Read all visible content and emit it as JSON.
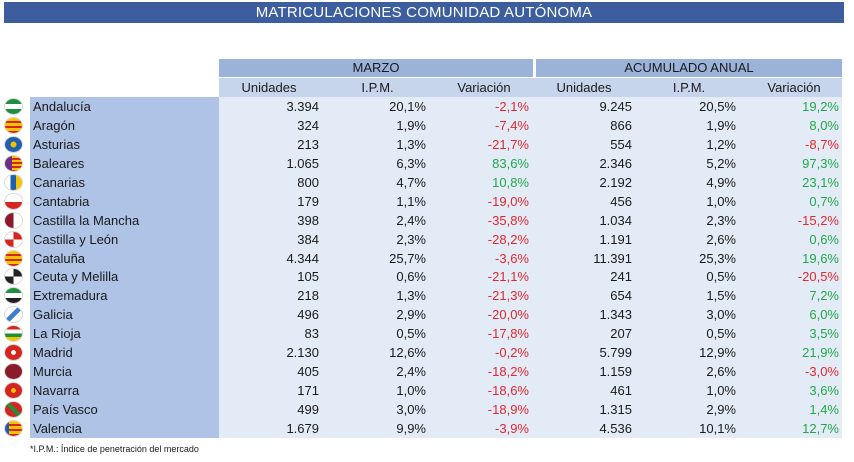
{
  "title": "MATRICULACIONES COMUNIDAD AUTÓNOMA",
  "groups": {
    "marzo": "MARZO",
    "anual": "ACUMULADO ANUAL"
  },
  "columns": {
    "unidades": "Unidades",
    "ipm": "I.P.M.",
    "variacion": "Variación"
  },
  "colors": {
    "negative": "#e0282e",
    "positive": "#22a84a",
    "header": "#3d5e9e"
  },
  "rows": [
    {
      "name": "Andalucía",
      "flag": "flag-andalucia-icon",
      "m_uni": "3.394",
      "m_ipm": "20,1%",
      "m_var": "-2,1%",
      "a_uni": "9.245",
      "a_ipm": "20,5%",
      "a_var": "19,2%"
    },
    {
      "name": "Aragón",
      "flag": "flag-aragon-icon",
      "m_uni": "324",
      "m_ipm": "1,9%",
      "m_var": "-7,4%",
      "a_uni": "866",
      "a_ipm": "1,9%",
      "a_var": "8,0%"
    },
    {
      "name": "Asturias",
      "flag": "flag-asturias-icon",
      "m_uni": "213",
      "m_ipm": "1,3%",
      "m_var": "-21,7%",
      "a_uni": "554",
      "a_ipm": "1,2%",
      "a_var": "-8,7%"
    },
    {
      "name": "Baleares",
      "flag": "flag-baleares-icon",
      "m_uni": "1.065",
      "m_ipm": "6,3%",
      "m_var": "83,6%",
      "a_uni": "2.346",
      "a_ipm": "5,2%",
      "a_var": "97,3%"
    },
    {
      "name": "Canarias",
      "flag": "flag-canarias-icon",
      "m_uni": "800",
      "m_ipm": "4,7%",
      "m_var": "10,8%",
      "a_uni": "2.192",
      "a_ipm": "4,9%",
      "a_var": "23,1%"
    },
    {
      "name": "Cantabria",
      "flag": "flag-cantabria-icon",
      "m_uni": "179",
      "m_ipm": "1,1%",
      "m_var": "-19,0%",
      "a_uni": "456",
      "a_ipm": "1,0%",
      "a_var": "0,7%"
    },
    {
      "name": "Castilla la Mancha",
      "flag": "flag-castilla-la-mancha-icon",
      "m_uni": "398",
      "m_ipm": "2,4%",
      "m_var": "-35,8%",
      "a_uni": "1.034",
      "a_ipm": "2,3%",
      "a_var": "-15,2%"
    },
    {
      "name": "Castilla y León",
      "flag": "flag-castilla-y-leon-icon",
      "m_uni": "384",
      "m_ipm": "2,3%",
      "m_var": "-28,2%",
      "a_uni": "1.191",
      "a_ipm": "2,6%",
      "a_var": "0,6%"
    },
    {
      "name": "Cataluña",
      "flag": "flag-cataluna-icon",
      "m_uni": "4.344",
      "m_ipm": "25,7%",
      "m_var": "-3,6%",
      "a_uni": "11.391",
      "a_ipm": "25,3%",
      "a_var": "19,6%"
    },
    {
      "name": "Ceuta y Melilla",
      "flag": "flag-ceuta-melilla-icon",
      "m_uni": "105",
      "m_ipm": "0,6%",
      "m_var": "-21,1%",
      "a_uni": "241",
      "a_ipm": "0,5%",
      "a_var": "-20,5%"
    },
    {
      "name": "Extremadura",
      "flag": "flag-extremadura-icon",
      "m_uni": "218",
      "m_ipm": "1,3%",
      "m_var": "-21,3%",
      "a_uni": "654",
      "a_ipm": "1,5%",
      "a_var": "7,2%"
    },
    {
      "name": "Galicia",
      "flag": "flag-galicia-icon",
      "m_uni": "496",
      "m_ipm": "2,9%",
      "m_var": "-20,0%",
      "a_uni": "1.343",
      "a_ipm": "3,0%",
      "a_var": "6,0%"
    },
    {
      "name": "La Rioja",
      "flag": "flag-la-rioja-icon",
      "m_uni": "83",
      "m_ipm": "0,5%",
      "m_var": "-17,8%",
      "a_uni": "207",
      "a_ipm": "0,5%",
      "a_var": "3,5%"
    },
    {
      "name": "Madrid",
      "flag": "flag-madrid-icon",
      "m_uni": "2.130",
      "m_ipm": "12,6%",
      "m_var": "-0,2%",
      "a_uni": "5.799",
      "a_ipm": "12,9%",
      "a_var": "21,9%"
    },
    {
      "name": "Murcia",
      "flag": "flag-murcia-icon",
      "m_uni": "405",
      "m_ipm": "2,4%",
      "m_var": "-18,2%",
      "a_uni": "1.159",
      "a_ipm": "2,6%",
      "a_var": "-3,0%"
    },
    {
      "name": "Navarra",
      "flag": "flag-navarra-icon",
      "m_uni": "171",
      "m_ipm": "1,0%",
      "m_var": "-18,6%",
      "a_uni": "461",
      "a_ipm": "1,0%",
      "a_var": "3,6%"
    },
    {
      "name": "País Vasco",
      "flag": "flag-pais-vasco-icon",
      "m_uni": "499",
      "m_ipm": "3,0%",
      "m_var": "-18,9%",
      "a_uni": "1.315",
      "a_ipm": "2,9%",
      "a_var": "1,4%"
    },
    {
      "name": "Valencia",
      "flag": "flag-valencia-icon",
      "m_uni": "1.679",
      "m_ipm": "9,9%",
      "m_var": "-3,9%",
      "a_uni": "4.536",
      "a_ipm": "10,1%",
      "a_var": "12,7%"
    }
  ],
  "footnote": "*I.P.M.: Índice de penetración del mercado"
}
